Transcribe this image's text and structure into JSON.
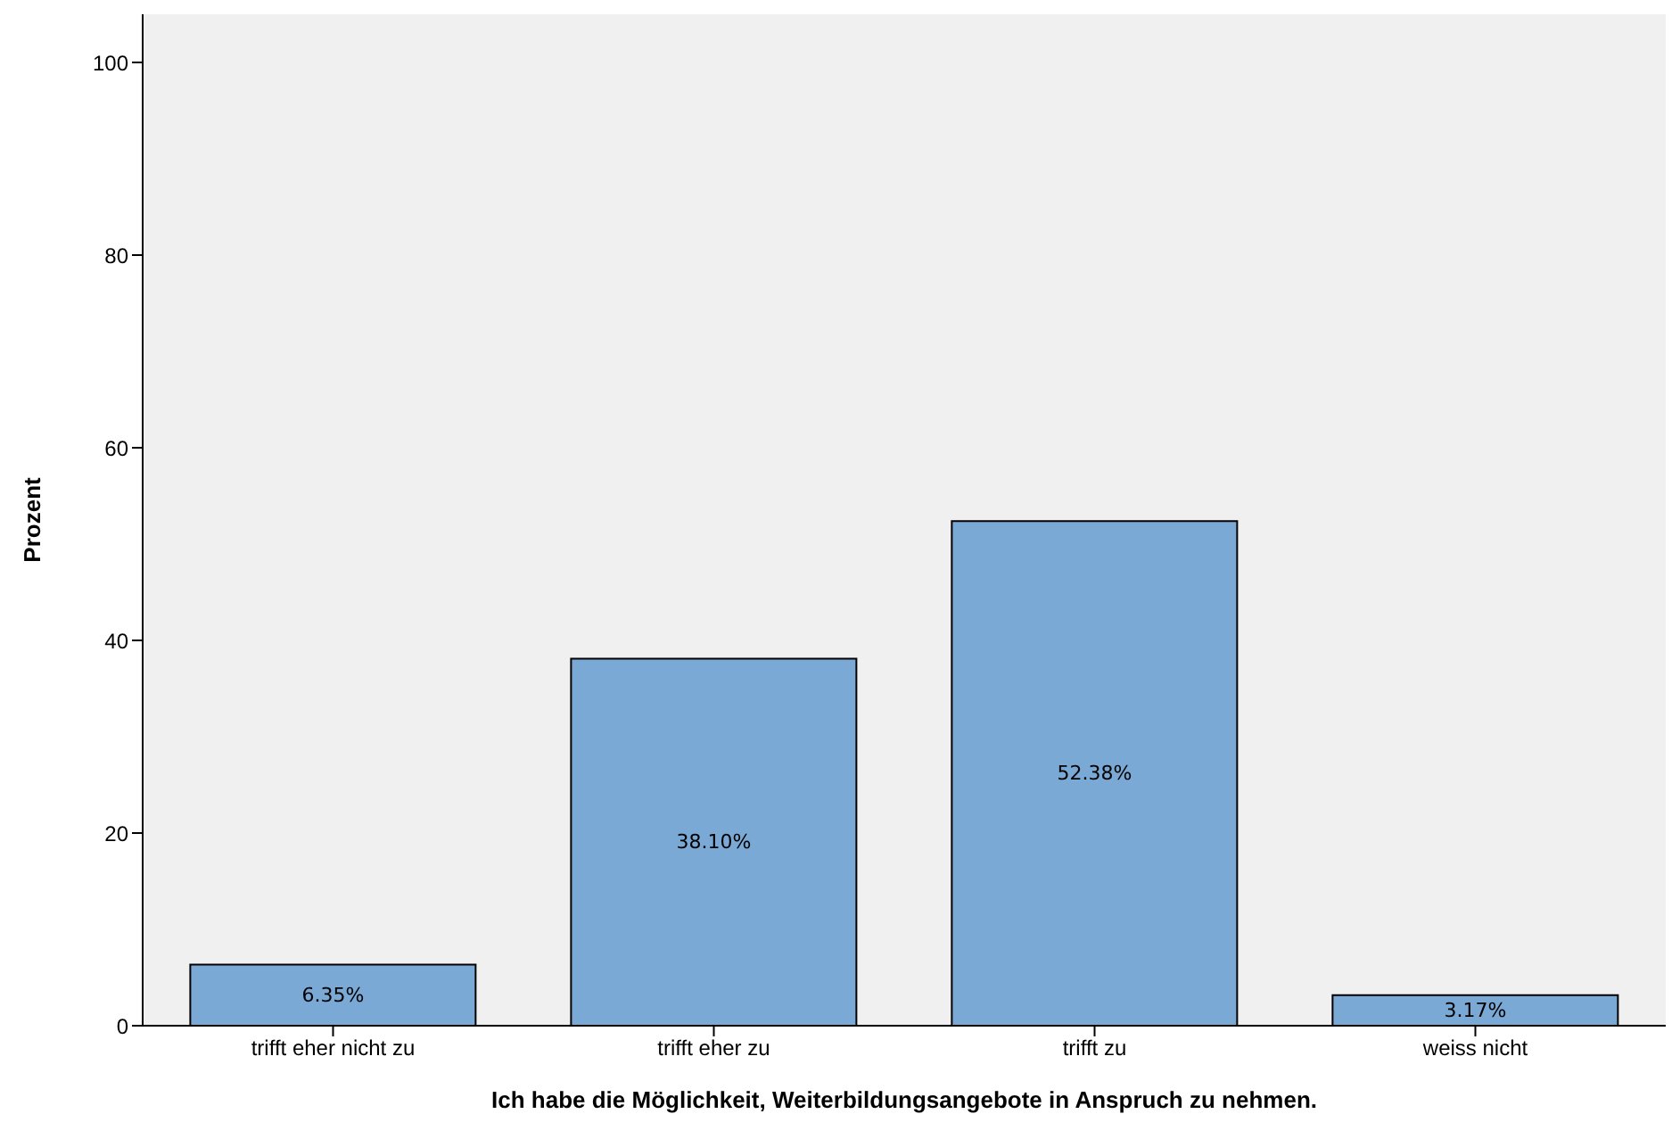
{
  "chart_data": {
    "type": "bar",
    "xlabel": "Ich habe die Möglichkeit, Weiterbildungsangebote in Anspruch zu nehmen.",
    "ylabel": "Prozent",
    "categories": [
      "trifft eher nicht zu",
      "trifft eher zu",
      "trifft zu",
      "weiss nicht"
    ],
    "values": [
      6.35,
      38.1,
      52.38,
      3.17
    ],
    "value_labels": [
      "6.35%",
      "38.10%",
      "52.38%",
      "3.17%"
    ],
    "color": "#7ba9d6",
    "ylim": [
      0,
      105
    ],
    "yticks": [
      0,
      20,
      40,
      60,
      80,
      100
    ],
    "grid": false
  }
}
